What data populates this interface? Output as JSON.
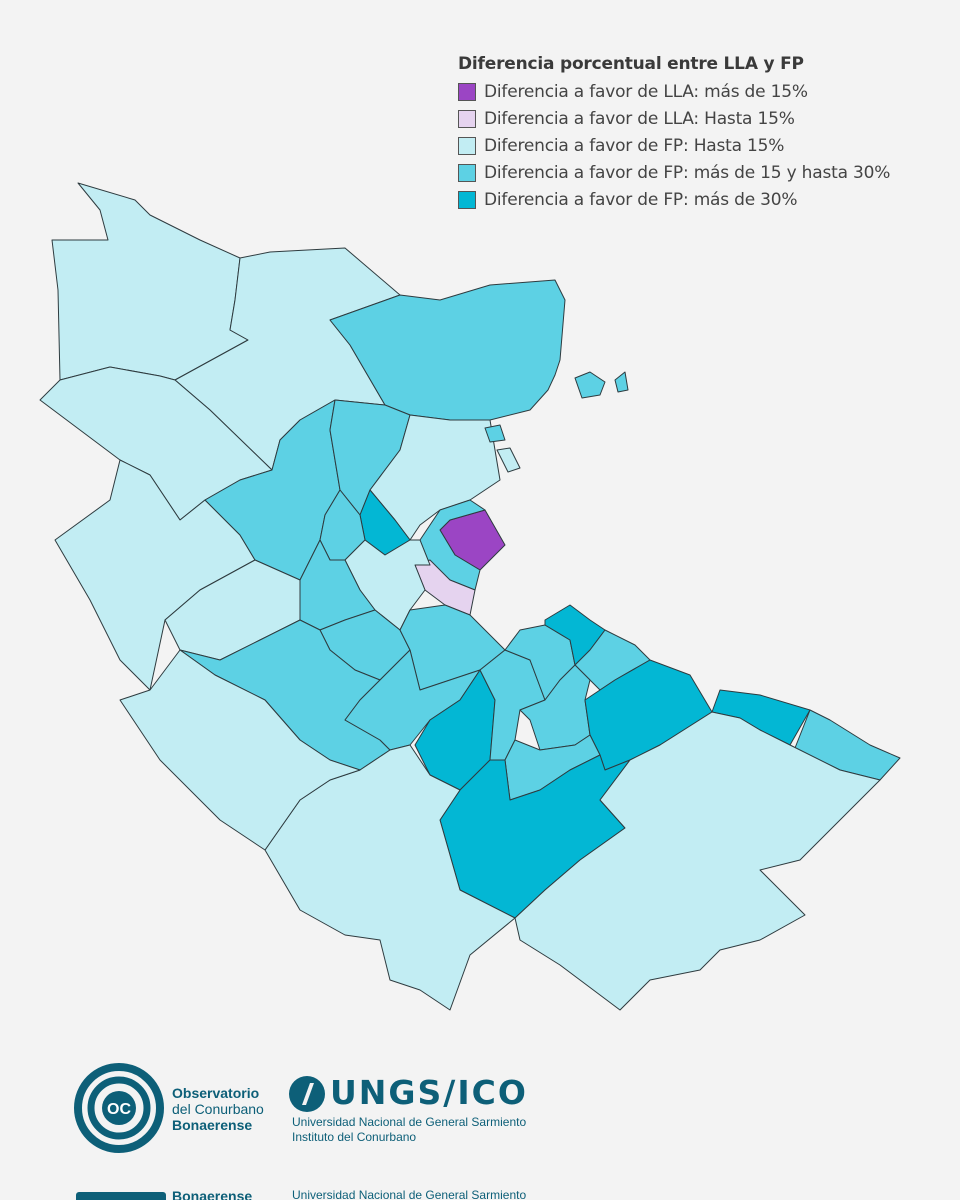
{
  "legend": {
    "title": "Diferencia porcentual entre LLA y FP",
    "items": [
      {
        "label": "Diferencia a favor de LLA: más de 15%",
        "color": "#9b45c4",
        "key": "lla15"
      },
      {
        "label": "Diferencia a favor de LLA: Hasta 15%",
        "color": "#e5d3ef",
        "key": "lla0"
      },
      {
        "label": "Diferencia a favor de FP: Hasta 15%",
        "color": "#c2edf3",
        "key": "fp0"
      },
      {
        "label": "Diferencia a favor de FP: más de 15 y hasta 30%",
        "color": "#5dd1e4",
        "key": "fp15"
      },
      {
        "label": "Diferencia a favor de FP: más de 30%",
        "color": "#03b7d4",
        "key": "fp30"
      }
    ]
  },
  "logos": {
    "occ": {
      "line1": "Observatorio",
      "line2": "del Conurbano",
      "line3": "Bonaerense"
    },
    "ungs": {
      "title": "UNGS/ICO",
      "line1": "Universidad Nacional de General Sarmiento",
      "line2": "Instituto del Conurbano"
    },
    "ghost": {
      "line1": "Bonaerense",
      "line2": "Universidad Nacional de General Sarmiento"
    },
    "brand_color": "#0d5f78"
  }
}
